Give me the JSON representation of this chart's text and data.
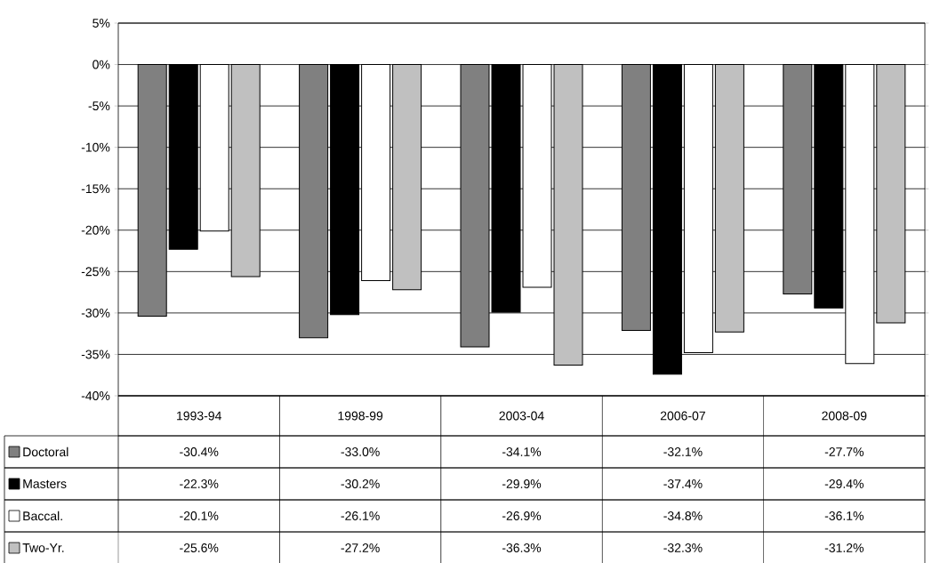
{
  "chart_data": {
    "type": "bar",
    "categories": [
      "1993-94",
      "1998-99",
      "2003-04",
      "2006-07",
      "2008-09"
    ],
    "series": [
      {
        "name": "Doctoral",
        "color": "#808080",
        "values": [
          -30.4,
          -33.0,
          -34.1,
          -32.1,
          -27.7
        ],
        "value_labels": [
          "-30.4%",
          "-33.0%",
          "-34.1%",
          "-32.1%",
          "-27.7%"
        ]
      },
      {
        "name": "Masters",
        "color": "#000000",
        "values": [
          -22.3,
          -30.2,
          -29.9,
          -37.4,
          -29.4
        ],
        "value_labels": [
          "-22.3%",
          "-30.2%",
          "-29.9%",
          "-37.4%",
          "-29.4%"
        ]
      },
      {
        "name": "Baccal.",
        "color": "#ffffff",
        "values": [
          -20.1,
          -26.1,
          -26.9,
          -34.8,
          -36.1
        ],
        "value_labels": [
          "-20.1%",
          "-26.1%",
          "-26.9%",
          "-34.8%",
          "-36.1%"
        ]
      },
      {
        "name": "Two-Yr.",
        "color": "#c0c0c0",
        "values": [
          -25.6,
          -27.2,
          -36.3,
          -32.3,
          -31.2
        ],
        "value_labels": [
          "-25.6%",
          "-27.2%",
          "-36.3%",
          "-32.3%",
          "-31.2%"
        ]
      }
    ],
    "ylim": [
      -40,
      5
    ],
    "yticks": [
      {
        "value": -40,
        "label": "-40%"
      },
      {
        "value": -35,
        "label": "-35%"
      },
      {
        "value": -30,
        "label": "-30%"
      },
      {
        "value": -25,
        "label": "-25%"
      },
      {
        "value": -20,
        "label": "-20%"
      },
      {
        "value": -15,
        "label": "-15%"
      },
      {
        "value": -10,
        "label": "-10%"
      },
      {
        "value": -5,
        "label": "-5%"
      },
      {
        "value": 0,
        "label": "0%"
      },
      {
        "value": 5,
        "label": "5%"
      }
    ],
    "grid": "y",
    "legend": "bottom left"
  }
}
